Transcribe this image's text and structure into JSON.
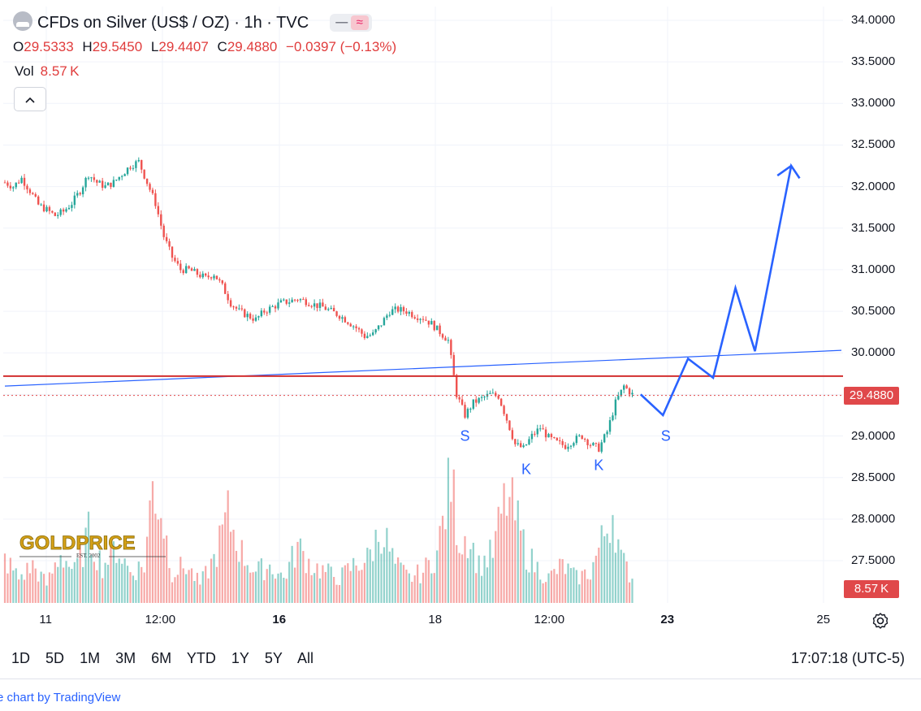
{
  "header": {
    "symbol_title": "CFDs on Silver (US$ / OZ) · 1h · TVC",
    "badge_left": "—",
    "badge_right": "≈"
  },
  "ohlc": {
    "o_label": "O",
    "o": "29.5333",
    "h_label": "H",
    "h": "29.5450",
    "l_label": "L",
    "l": "29.4407",
    "c_label": "C",
    "c": "29.4880",
    "change": "−0.0397 (−0.13%)"
  },
  "volume": {
    "label": "Vol",
    "value": "8.57 K"
  },
  "price_axis": {
    "ticks": [
      "34.0000",
      "33.5000",
      "33.0000",
      "32.5000",
      "32.0000",
      "31.5000",
      "31.0000",
      "30.5000",
      "30.0000",
      "29.0000",
      "28.5000",
      "28.0000",
      "27.5000"
    ],
    "last_price_label": "29.4880",
    "last_volume_label": "8.57 K"
  },
  "time_axis": {
    "labels": [
      "11",
      "12:00",
      "16",
      "18",
      "12:00",
      "23",
      "25"
    ]
  },
  "range_buttons": [
    "1D",
    "5D",
    "1M",
    "3M",
    "6M",
    "YTD",
    "1Y",
    "5Y",
    "All"
  ],
  "clock": "17:07:18 (UTC-5)",
  "credit": "e chart by TradingView",
  "watermark": {
    "text": "GOLDPRICE",
    "sub": "EST. 2002"
  },
  "colors": {
    "up": "#26a69a",
    "down": "#ef5350",
    "projection": "#2962ff",
    "resistance": "#d32f2f",
    "accent_red": "#e0484a"
  },
  "icons": {
    "collapse": "chevron-up-icon",
    "settings": "settings-gear-icon",
    "symbol": "silver-logo-icon"
  },
  "chart_data": {
    "type": "candlestick",
    "title": "CFDs on Silver (US$ / OZ) · 1h · TVC",
    "ylim": [
      27.0,
      34.2
    ],
    "x_labels": [
      "11",
      "12:00",
      "16",
      "18",
      "12:00",
      "23",
      "25"
    ],
    "price_path": [
      [
        0,
        32.05
      ],
      [
        3,
        32.0
      ],
      [
        6,
        32.1
      ],
      [
        9,
        31.95
      ],
      [
        12,
        31.78
      ],
      [
        15,
        31.72
      ],
      [
        18,
        31.65
      ],
      [
        21,
        31.7
      ],
      [
        24,
        31.8
      ],
      [
        27,
        31.95
      ],
      [
        30,
        32.15
      ],
      [
        33,
        32.05
      ],
      [
        36,
        32.0
      ],
      [
        39,
        32.05
      ],
      [
        42,
        32.15
      ],
      [
        45,
        32.25
      ],
      [
        48,
        32.3
      ],
      [
        51,
        32.05
      ],
      [
        54,
        31.8
      ],
      [
        57,
        31.4
      ],
      [
        60,
        31.15
      ],
      [
        63,
        31.0
      ],
      [
        66,
        31.0
      ],
      [
        69,
        30.95
      ],
      [
        72,
        30.9
      ],
      [
        75,
        30.95
      ],
      [
        78,
        30.8
      ],
      [
        81,
        30.6
      ],
      [
        84,
        30.5
      ],
      [
        87,
        30.45
      ],
      [
        90,
        30.4
      ],
      [
        93,
        30.5
      ],
      [
        96,
        30.55
      ],
      [
        99,
        30.6
      ],
      [
        102,
        30.62
      ],
      [
        105,
        30.65
      ],
      [
        108,
        30.62
      ],
      [
        111,
        30.58
      ],
      [
        114,
        30.55
      ],
      [
        117,
        30.5
      ],
      [
        120,
        30.45
      ],
      [
        123,
        30.38
      ],
      [
        126,
        30.3
      ],
      [
        129,
        30.2
      ],
      [
        132,
        30.22
      ],
      [
        135,
        30.35
      ],
      [
        138,
        30.5
      ],
      [
        141,
        30.52
      ],
      [
        144,
        30.5
      ],
      [
        147,
        30.45
      ],
      [
        150,
        30.42
      ],
      [
        153,
        30.35
      ],
      [
        156,
        30.25
      ],
      [
        159,
        30.15
      ],
      [
        162,
        29.5
      ],
      [
        165,
        29.25
      ],
      [
        168,
        29.4
      ],
      [
        171,
        29.45
      ],
      [
        174,
        29.5
      ],
      [
        177,
        29.48
      ],
      [
        180,
        29.2
      ],
      [
        183,
        28.9
      ],
      [
        186,
        28.85
      ],
      [
        189,
        29.0
      ],
      [
        192,
        29.1
      ],
      [
        195,
        28.98
      ],
      [
        198,
        28.92
      ],
      [
        201,
        28.88
      ],
      [
        204,
        28.95
      ],
      [
        207,
        29.0
      ],
      [
        210,
        28.9
      ],
      [
        213,
        28.85
      ],
      [
        216,
        29.05
      ],
      [
        219,
        29.4
      ],
      [
        222,
        29.6
      ],
      [
        225,
        29.5
      ]
    ],
    "volume_path": [
      [
        0,
        0.35
      ],
      [
        5,
        0.2
      ],
      [
        10,
        0.3
      ],
      [
        15,
        0.15
      ],
      [
        20,
        0.4
      ],
      [
        25,
        0.25
      ],
      [
        30,
        0.55
      ],
      [
        35,
        0.3
      ],
      [
        40,
        0.45
      ],
      [
        45,
        0.25
      ],
      [
        50,
        0.3
      ],
      [
        53,
        0.95
      ],
      [
        56,
        0.75
      ],
      [
        60,
        0.25
      ],
      [
        65,
        0.3
      ],
      [
        70,
        0.15
      ],
      [
        75,
        0.35
      ],
      [
        80,
        0.7
      ],
      [
        85,
        0.4
      ],
      [
        90,
        0.25
      ],
      [
        95,
        0.3
      ],
      [
        100,
        0.2
      ],
      [
        105,
        0.45
      ],
      [
        110,
        0.3
      ],
      [
        115,
        0.25
      ],
      [
        120,
        0.2
      ],
      [
        125,
        0.3
      ],
      [
        130,
        0.35
      ],
      [
        135,
        0.6
      ],
      [
        140,
        0.3
      ],
      [
        145,
        0.2
      ],
      [
        150,
        0.25
      ],
      [
        155,
        0.4
      ],
      [
        160,
        1.0
      ],
      [
        163,
        0.5
      ],
      [
        166,
        0.55
      ],
      [
        170,
        0.3
      ],
      [
        175,
        0.4
      ],
      [
        178,
        0.7
      ],
      [
        180,
        0.85
      ],
      [
        183,
        0.7
      ],
      [
        187,
        0.4
      ],
      [
        190,
        0.3
      ],
      [
        195,
        0.2
      ],
      [
        200,
        0.3
      ],
      [
        205,
        0.2
      ],
      [
        210,
        0.25
      ],
      [
        215,
        0.55
      ],
      [
        218,
        0.75
      ],
      [
        221,
        0.35
      ],
      [
        225,
        0.2
      ]
    ],
    "annotations": [
      {
        "label": "S",
        "x": 165,
        "y": 29.0
      },
      {
        "label": "K",
        "x": 187,
        "y": 28.6
      },
      {
        "label": "K",
        "x": 213,
        "y": 28.65
      },
      {
        "label": "S",
        "x": 237,
        "y": 29.0
      }
    ],
    "projection_path": [
      [
        228,
        29.5
      ],
      [
        236,
        29.25
      ],
      [
        245,
        29.93
      ],
      [
        254,
        29.7
      ],
      [
        262,
        30.78
      ],
      [
        269,
        30.02
      ],
      [
        282,
        32.25
      ],
      [
        285,
        32.1
      ]
    ],
    "horizontal_line": 29.72,
    "last_price": 29.488,
    "trendline": [
      [
        0,
        29.6
      ],
      [
        300,
        30.03
      ]
    ]
  }
}
